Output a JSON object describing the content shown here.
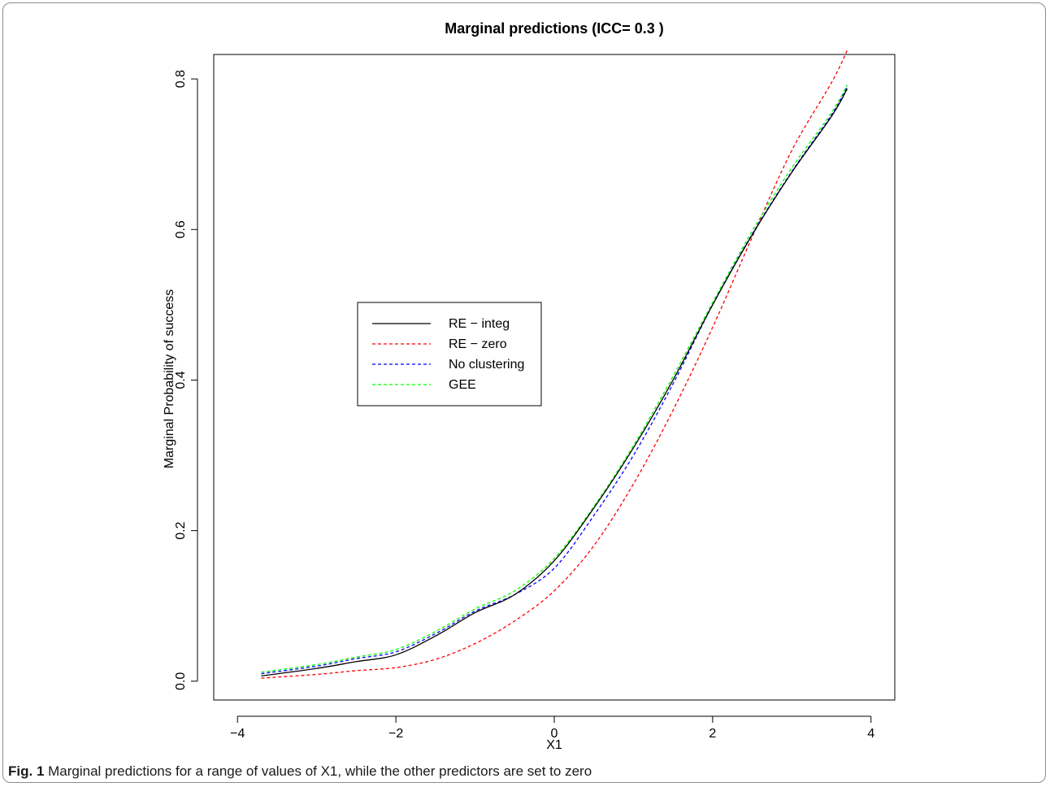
{
  "chart_data": {
    "type": "line",
    "title": "Marginal predictions (ICC= 0.3 )",
    "xlabel": "X1",
    "ylabel": "Marginal Probability of success",
    "xlim": [
      -4.3,
      4.3
    ],
    "ylim": [
      -0.025,
      0.8325
    ],
    "xticks": [
      -4,
      -2,
      0,
      2,
      4
    ],
    "xtick_labels": [
      "−4",
      "−2",
      "0",
      "2",
      "4"
    ],
    "yticks": [
      0.0,
      0.2,
      0.4,
      0.6,
      0.8
    ],
    "ytick_labels": [
      "0.0",
      "0.2",
      "0.4",
      "0.6",
      "0.8"
    ],
    "grid": false,
    "legend_position": "center-left",
    "x": [
      -3.7,
      -3.0,
      -2.5,
      -2.0,
      -1.5,
      -1.0,
      -0.5,
      0.0,
      0.5,
      1.0,
      1.5,
      2.0,
      2.5,
      3.0,
      3.5,
      3.7
    ],
    "series": [
      {
        "name": "RE − integ",
        "color": "#000000",
        "dash": "solid",
        "values": [
          0.007,
          0.017,
          0.026,
          0.035,
          0.06,
          0.091,
          0.115,
          0.16,
          0.23,
          0.31,
          0.4,
          0.5,
          0.593,
          0.676,
          0.75,
          0.787
        ]
      },
      {
        "name": "RE − zero",
        "color": "#ff0000",
        "dash": "dashed",
        "values": [
          0.004,
          0.009,
          0.014,
          0.018,
          0.029,
          0.05,
          0.08,
          0.12,
          0.18,
          0.262,
          0.36,
          0.47,
          0.59,
          0.705,
          0.795,
          0.838
        ]
      },
      {
        "name": "No clustering",
        "color": "#0000ff",
        "dash": "dashed",
        "values": [
          0.01,
          0.02,
          0.03,
          0.039,
          0.063,
          0.093,
          0.115,
          0.15,
          0.22,
          0.3,
          0.395,
          0.5,
          0.594,
          0.677,
          0.752,
          0.79
        ]
      },
      {
        "name": "GEE",
        "color": "#00ff00",
        "dash": "dashed",
        "values": [
          0.012,
          0.022,
          0.032,
          0.042,
          0.066,
          0.096,
          0.12,
          0.163,
          0.232,
          0.313,
          0.405,
          0.503,
          0.598,
          0.682,
          0.755,
          0.792
        ]
      }
    ]
  },
  "caption": {
    "label": "Fig. 1",
    "text": " Marginal predictions for a range of values of X1, while the other predictors are set to zero"
  }
}
